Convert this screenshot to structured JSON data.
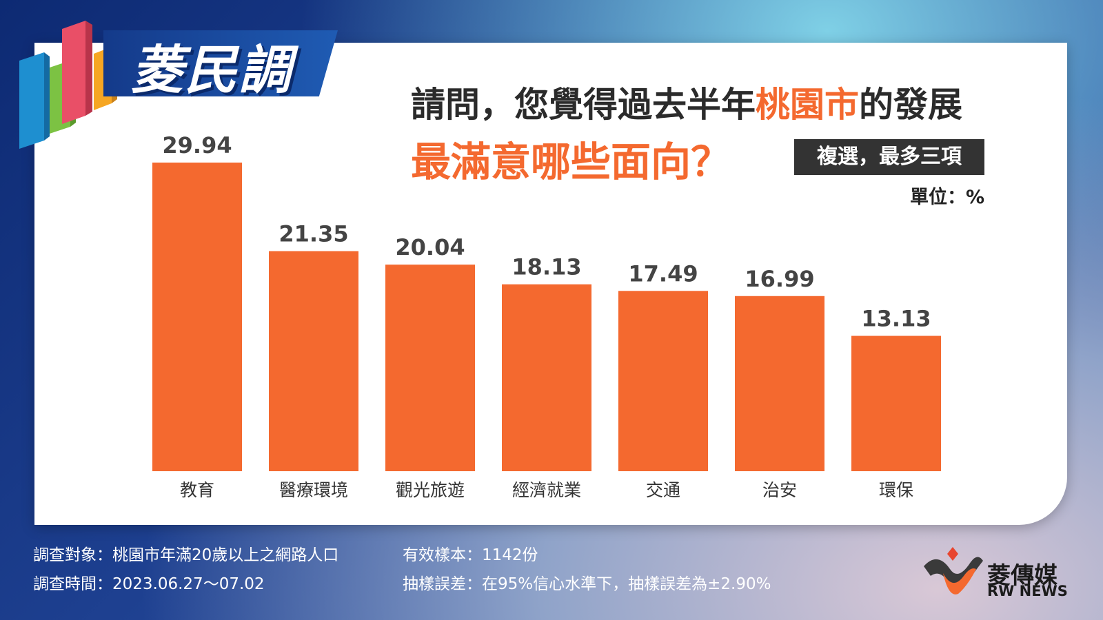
{
  "header": {
    "logo_text": "菱民調",
    "question_part1": "請問，您覺得過去半年",
    "question_highlight": "桃園市",
    "question_part2": "的發展",
    "question_line2": "最滿意哪些面向？",
    "multi_select_note": "複選，最多三項",
    "unit_label": "單位：%"
  },
  "colors": {
    "bar": "#f4692f",
    "highlight": "#f4692f",
    "title": "#2b2b2b"
  },
  "chart_data": {
    "type": "bar",
    "categories": [
      "教育",
      "醫療環境",
      "觀光旅遊",
      "經濟就業",
      "交通",
      "治安",
      "環保"
    ],
    "values": [
      29.94,
      21.35,
      20.04,
      18.13,
      17.49,
      16.99,
      13.13
    ],
    "value_labels": [
      "29.94",
      "21.35",
      "20.04",
      "18.13",
      "17.49",
      "16.99",
      "13.13"
    ],
    "title": "",
    "xlabel": "",
    "ylabel": "",
    "ylim": [
      0,
      30
    ],
    "grid": false,
    "legend": "none"
  },
  "footer": {
    "target": "調查對象：桃園市年滿20歲以上之網路人口",
    "period": "調查時間：2023.06.27～07.02",
    "sample": "有效樣本：1142份",
    "error": "抽樣誤差：在95%信心水準下，抽樣誤差為±2.90%",
    "brand_cn": "菱傳媒",
    "brand_en": "RW NEWS"
  }
}
